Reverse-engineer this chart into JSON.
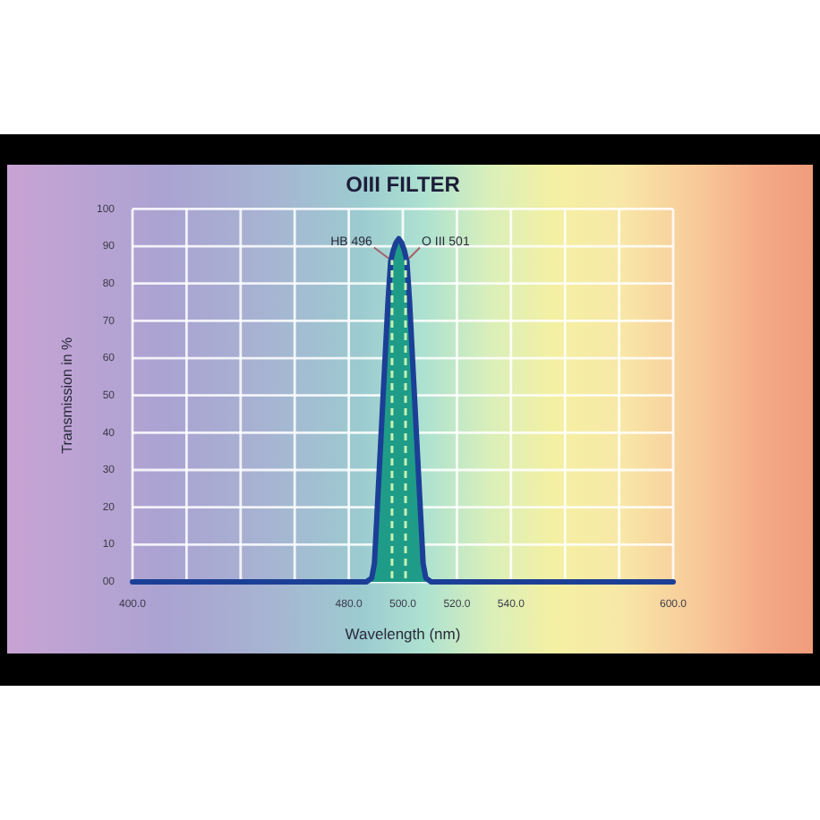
{
  "chart_data": {
    "type": "area",
    "title": "OIII FILTER",
    "xlabel": "Wavelength (nm)",
    "ylabel": "Transmission in %",
    "x": [
      400,
      486.5,
      488.5,
      489.5,
      490.5,
      491.5,
      492.5,
      493.5,
      494.5,
      495.5,
      496.5,
      497.5,
      498.5,
      499.5,
      500.5,
      501.5,
      502.5,
      503.5,
      504.5,
      505.5,
      506.5,
      507.5,
      508.5,
      510.5,
      600
    ],
    "series": [
      {
        "color": "#1f9c88",
        "x": [
          486.5,
          488.5,
          489.5,
          490.5,
          491.5,
          492.5,
          493.5,
          494.5,
          495.5,
          496.5,
          497.5,
          498.5,
          499.5,
          500.5,
          501.5,
          502.5,
          503.5,
          504.5,
          505.5,
          506.5,
          507.5,
          508.5,
          510.5
        ],
        "values": [
          0,
          1,
          5,
          19,
          33,
          47,
          61,
          75,
          86,
          89,
          91,
          92,
          91,
          89,
          86,
          75,
          61,
          47,
          33,
          19,
          5,
          1,
          0
        ]
      },
      {
        "type": "line",
        "color": "#1b3f96",
        "values": [
          0,
          0,
          1,
          5,
          19,
          33,
          47,
          61,
          75,
          86,
          89,
          91,
          92,
          91,
          89,
          86,
          75,
          61,
          47,
          33,
          19,
          5,
          1,
          0,
          0
        ]
      }
    ],
    "xlim": [
      400,
      600
    ],
    "xticks": [
      {
        "value": 400,
        "label": "400.0"
      },
      {
        "value": 420,
        "label": null
      },
      {
        "value": 440,
        "label": null
      },
      {
        "value": 460,
        "label": null
      },
      {
        "value": 480,
        "label": "480.0"
      },
      {
        "value": 500,
        "label": "500.0"
      },
      {
        "value": 520,
        "label": "520.0"
      },
      {
        "value": 540,
        "label": "540.0"
      },
      {
        "value": 560,
        "label": null
      },
      {
        "value": 580,
        "label": null
      },
      {
        "value": 600,
        "label": "600.0"
      }
    ],
    "ylim": [
      0,
      100
    ],
    "yticks": [
      {
        "value": 0,
        "label": "00"
      },
      10,
      20,
      30,
      40,
      50,
      60,
      70,
      80,
      90,
      100
    ],
    "grid": true,
    "ref_lines": [
      {
        "axis": "x",
        "value": 496,
        "label": "HB 496",
        "color": "#c6f2b4",
        "line_style": "dashed"
      },
      {
        "axis": "x",
        "value": 501,
        "label": "O III 501",
        "color": "#c6f2b4",
        "line_style": "dashed"
      }
    ]
  }
}
